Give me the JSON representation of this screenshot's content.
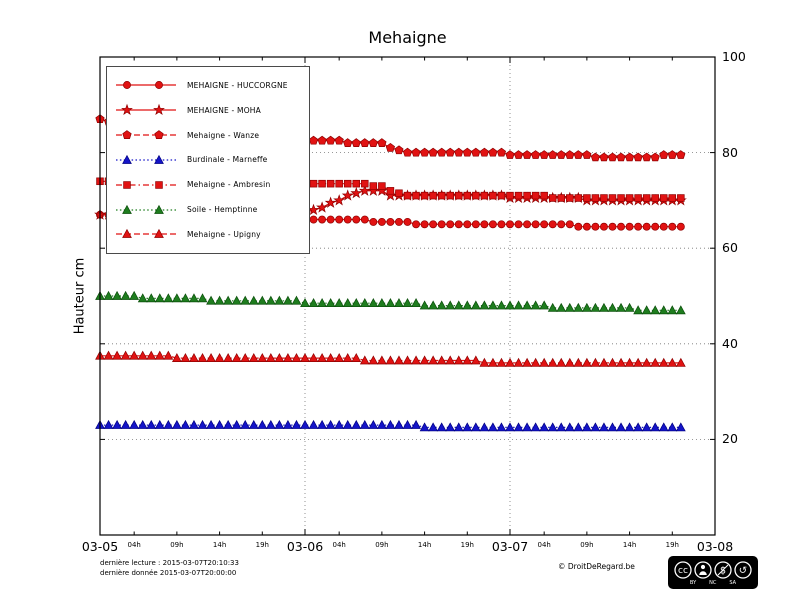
{
  "page": {
    "title": "Mehaigne"
  },
  "footer": {
    "last_reading": "dernière lecture : 2015-03-07T20:10:33",
    "last_data": "dernière donnée  2015-03-07T20:00:00",
    "copyright": "© DroitDeRegard.be",
    "license_badge": {
      "label": "CC BY-NC-SA",
      "logo_text": "cc",
      "nc_glyph": "$",
      "sa_glyph": "↺",
      "parts": [
        "BY",
        "NC",
        "SA"
      ]
    }
  },
  "chart_data": {
    "type": "line",
    "title": "Mehaigne",
    "xlabel": "",
    "ylabel": "Hauteur cm",
    "ylim": [
      0,
      100
    ],
    "xlim_hours": [
      0,
      72
    ],
    "x_description": "hours since 2015-03-05 00:00",
    "grid": {
      "horizontal": [
        20,
        40,
        60,
        80
      ],
      "vertical_hours": [
        24,
        48
      ]
    },
    "legend_position": "upper left",
    "y_ticks": [
      20,
      40,
      60,
      80,
      100
    ],
    "x_axis_days": [
      {
        "hour": 0,
        "label": "03-05"
      },
      {
        "hour": 24,
        "label": "03-06"
      },
      {
        "hour": 48,
        "label": "03-07"
      },
      {
        "hour": 72,
        "label": "03-08"
      }
    ],
    "x_axis_minor": [
      {
        "hour": 4,
        "label": "04h"
      },
      {
        "hour": 9,
        "label": "09h"
      },
      {
        "hour": 14,
        "label": "14h"
      },
      {
        "hour": 19,
        "label": "19h"
      },
      {
        "hour": 28,
        "label": "04h"
      },
      {
        "hour": 33,
        "label": "09h"
      },
      {
        "hour": 38,
        "label": "14h"
      },
      {
        "hour": 43,
        "label": "19h"
      },
      {
        "hour": 52,
        "label": "04h"
      },
      {
        "hour": 57,
        "label": "09h"
      },
      {
        "hour": 62,
        "label": "14h"
      },
      {
        "hour": 67,
        "label": "19h"
      }
    ],
    "x_hours": [
      0,
      1,
      2,
      3,
      4,
      5,
      6,
      7,
      8,
      9,
      10,
      11,
      12,
      13,
      14,
      15,
      16,
      17,
      18,
      19,
      20,
      21,
      22,
      23,
      24,
      25,
      26,
      27,
      28,
      29,
      30,
      31,
      32,
      33,
      34,
      35,
      36,
      37,
      38,
      39,
      40,
      41,
      42,
      43,
      44,
      45,
      46,
      47,
      48,
      49,
      50,
      51,
      52,
      53,
      54,
      55,
      56,
      57,
      58,
      59,
      60,
      61,
      62,
      63,
      64,
      65,
      66,
      67,
      68
    ],
    "series": [
      {
        "name": "MEHAIGNE - HUCCORGNE",
        "color": "#e11212",
        "edge": "#8f0000",
        "marker": "circle",
        "linestyle": "solid",
        "values": [
          67,
          67,
          67,
          67,
          67,
          67,
          66.5,
          66.5,
          66.5,
          66.5,
          66.5,
          66.5,
          66.5,
          66.5,
          66.5,
          66.5,
          66.5,
          66.5,
          66.5,
          66.5,
          66.5,
          66.5,
          66.5,
          66.5,
          66,
          66,
          66,
          66,
          66,
          66,
          66,
          66,
          65.5,
          65.5,
          65.5,
          65.5,
          65.5,
          65,
          65,
          65,
          65,
          65,
          65,
          65,
          65,
          65,
          65,
          65,
          65,
          65,
          65,
          65,
          65,
          65,
          65,
          65,
          64.5,
          64.5,
          64.5,
          64.5,
          64.5,
          64.5,
          64.5,
          64.5,
          64.5,
          64.5,
          64.5,
          64.5,
          64.5
        ]
      },
      {
        "name": "MEHAIGNE - MOHA",
        "color": "#e11212",
        "edge": "#8f0000",
        "marker": "star",
        "linestyle": "solid",
        "values": [
          67,
          67,
          67,
          67,
          67,
          67,
          67,
          67,
          67,
          67,
          67,
          67,
          67,
          67,
          67,
          67,
          67,
          67,
          67,
          67,
          67,
          67,
          67,
          67,
          67.5,
          68,
          68.5,
          69.5,
          70,
          71,
          71.5,
          72,
          72,
          72,
          71,
          71,
          71,
          71,
          71,
          71,
          71,
          71,
          71,
          71,
          71,
          71,
          71,
          71,
          70.5,
          70.5,
          70.5,
          70.5,
          70.5,
          70.5,
          70.5,
          70.5,
          70.5,
          70,
          70,
          70,
          70,
          70,
          70,
          70,
          70,
          70,
          70,
          70,
          70
        ]
      },
      {
        "name": "Mehaigne - Wanze",
        "color": "#e11212",
        "edge": "#8f0000",
        "marker": "pentagon",
        "linestyle": "dashed",
        "values": [
          87,
          86.5,
          86,
          85.5,
          85,
          85,
          84.5,
          84.5,
          84,
          84,
          84,
          83.5,
          83.5,
          83,
          83,
          83,
          83,
          83,
          83,
          83,
          83,
          83,
          83,
          83,
          82.5,
          82.5,
          82.5,
          82.5,
          82.5,
          82,
          82,
          82,
          82,
          82,
          81,
          80.5,
          80,
          80,
          80,
          80,
          80,
          80,
          80,
          80,
          80,
          80,
          80,
          80,
          79.5,
          79.5,
          79.5,
          79.5,
          79.5,
          79.5,
          79.5,
          79.5,
          79.5,
          79.5,
          79,
          79,
          79,
          79,
          79,
          79,
          79,
          79,
          79.5,
          79.5,
          79.5
        ]
      },
      {
        "name": "Burdinale - Marneffe",
        "color": "#1414c8",
        "edge": "#000080",
        "marker": "triangle",
        "linestyle": "dotted",
        "values": [
          23,
          23,
          23,
          23,
          23,
          23,
          23,
          23,
          23,
          23,
          23,
          23,
          23,
          23,
          23,
          23,
          23,
          23,
          23,
          23,
          23,
          23,
          23,
          23,
          23,
          23,
          23,
          23,
          23,
          23,
          23,
          23,
          23,
          23,
          23,
          23,
          23,
          23,
          22.5,
          22.5,
          22.5,
          22.5,
          22.5,
          22.5,
          22.5,
          22.5,
          22.5,
          22.5,
          22.5,
          22.5,
          22.5,
          22.5,
          22.5,
          22.5,
          22.5,
          22.5,
          22.5,
          22.5,
          22.5,
          22.5,
          22.5,
          22.5,
          22.5,
          22.5,
          22.5,
          22.5,
          22.5,
          22.5,
          22.5
        ]
      },
      {
        "name": "Mehaigne - Ambresin",
        "color": "#e11212",
        "edge": "#8f0000",
        "marker": "square",
        "linestyle": "dashdot",
        "values": [
          74,
          74,
          74,
          74,
          74,
          74,
          74,
          74,
          74,
          74,
          74,
          73.5,
          73.5,
          73.5,
          73.5,
          73.5,
          73.5,
          73.5,
          73.5,
          73.5,
          73.5,
          73.5,
          73.5,
          73.5,
          73.5,
          73.5,
          73.5,
          73.5,
          73.5,
          73.5,
          73.5,
          73.5,
          73,
          73,
          72,
          71.5,
          71,
          71,
          71,
          71,
          71,
          71,
          71,
          71,
          71,
          71,
          71,
          71,
          71,
          71,
          71,
          71,
          71,
          70.5,
          70.5,
          70.5,
          70.5,
          70.5,
          70.5,
          70.5,
          70.5,
          70.5,
          70.5,
          70.5,
          70.5,
          70.5,
          70.5,
          70.5,
          70.5
        ]
      },
      {
        "name": "Soile - Hemptinne",
        "color": "#1e7d1e",
        "edge": "#0b4d0b",
        "marker": "triangle",
        "linestyle": "dotted",
        "values": [
          50,
          50,
          50,
          50,
          50,
          49.5,
          49.5,
          49.5,
          49.5,
          49.5,
          49.5,
          49.5,
          49.5,
          49,
          49,
          49,
          49,
          49,
          49,
          49,
          49,
          49,
          49,
          49,
          48.5,
          48.5,
          48.5,
          48.5,
          48.5,
          48.5,
          48.5,
          48.5,
          48.5,
          48.5,
          48.5,
          48.5,
          48.5,
          48.5,
          48,
          48,
          48,
          48,
          48,
          48,
          48,
          48,
          48,
          48,
          48,
          48,
          48,
          48,
          48,
          47.5,
          47.5,
          47.5,
          47.5,
          47.5,
          47.5,
          47.5,
          47.5,
          47.5,
          47.5,
          47,
          47,
          47,
          47,
          47,
          47
        ]
      },
      {
        "name": "Mehaigne - Upigny",
        "color": "#e11212",
        "edge": "#8f0000",
        "marker": "triangle",
        "linestyle": "dashed",
        "values": [
          37.5,
          37.5,
          37.5,
          37.5,
          37.5,
          37.5,
          37.5,
          37.5,
          37.5,
          37,
          37,
          37,
          37,
          37,
          37,
          37,
          37,
          37,
          37,
          37,
          37,
          37,
          37,
          37,
          37,
          37,
          37,
          37,
          37,
          37,
          37,
          36.5,
          36.5,
          36.5,
          36.5,
          36.5,
          36.5,
          36.5,
          36.5,
          36.5,
          36.5,
          36.5,
          36.5,
          36.5,
          36.5,
          36,
          36,
          36,
          36,
          36,
          36,
          36,
          36,
          36,
          36,
          36,
          36,
          36,
          36,
          36,
          36,
          36,
          36,
          36,
          36,
          36,
          36,
          36,
          36
        ]
      }
    ]
  }
}
